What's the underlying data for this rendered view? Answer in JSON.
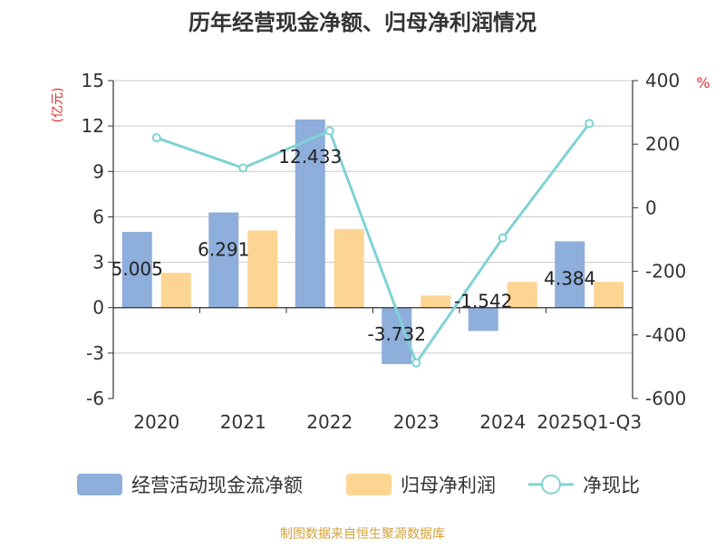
{
  "chart_data": {
    "type": "bar",
    "title": "历年经营现金净额、归母净利润情况",
    "categories": [
      "2020",
      "2021",
      "2022",
      "2023",
      "2024",
      "2025Q1-Q3"
    ],
    "y_left": {
      "label": "(亿元)",
      "ylim": [
        -6,
        15
      ],
      "ticks": [
        "15",
        "12",
        "9",
        "6",
        "3",
        "0",
        "-3",
        "-6"
      ]
    },
    "y_right": {
      "label": "%",
      "ylim": [
        -600,
        400
      ],
      "ticks": [
        "400",
        "200",
        "0",
        "-200",
        "-400",
        "-600"
      ]
    },
    "series": [
      {
        "name": "经营活动现金流净额",
        "type": "bar",
        "axis": "left",
        "color": "#8eaedb",
        "values": [
          5.005,
          6.291,
          12.433,
          -3.732,
          -1.542,
          4.384
        ],
        "labels": [
          "5.005",
          "6.291",
          "12.433",
          "-3.732",
          "-1.542",
          "4.384"
        ]
      },
      {
        "name": "归母净利润",
        "type": "bar",
        "axis": "left",
        "color": "#fdd592",
        "values": [
          2.3,
          5.1,
          5.2,
          0.8,
          1.7,
          1.7
        ]
      },
      {
        "name": "净现比",
        "type": "line",
        "axis": "right",
        "color": "#80d2d6",
        "values": [
          220,
          125,
          242,
          -488,
          -95,
          265
        ]
      }
    ],
    "grid": true,
    "legend_position": "bottom"
  },
  "footer": {
    "source": "制图数据来自恒生聚源数据库"
  }
}
